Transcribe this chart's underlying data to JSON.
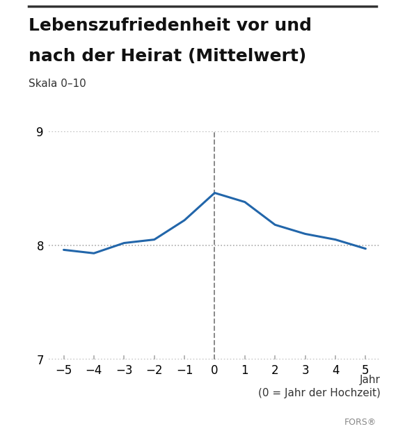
{
  "title_line1": "Lebenszufriedenheit vor und",
  "title_line2": "nach der Heirat (Mittelwert)",
  "subtitle": "Skala 0–10",
  "xlabel_line1": "Jahr",
  "xlabel_line2": "(0 = Jahr der Hochzeit)",
  "watermark": "FORS®",
  "x": [
    -5,
    -4,
    -3,
    -2,
    -1,
    0,
    1,
    2,
    3,
    4,
    5
  ],
  "y": [
    7.96,
    7.93,
    8.02,
    8.05,
    8.22,
    8.46,
    8.38,
    8.18,
    8.1,
    8.05,
    7.97
  ],
  "ylim": [
    7.0,
    9.0
  ],
  "yticks": [
    7,
    8,
    9
  ],
  "xlim": [
    -5.5,
    5.5
  ],
  "xticks": [
    -5,
    -4,
    -3,
    -2,
    -1,
    0,
    1,
    2,
    3,
    4,
    5
  ],
  "line_color": "#2266aa",
  "line_width": 2.2,
  "grid_color": "#aaaaaa",
  "vline_color": "#888888",
  "background_color": "#ffffff",
  "title_fontsize": 18,
  "subtitle_fontsize": 11,
  "tick_fontsize": 12,
  "xlabel_fontsize": 11,
  "watermark_fontsize": 9,
  "top_bar_color": "#333333"
}
